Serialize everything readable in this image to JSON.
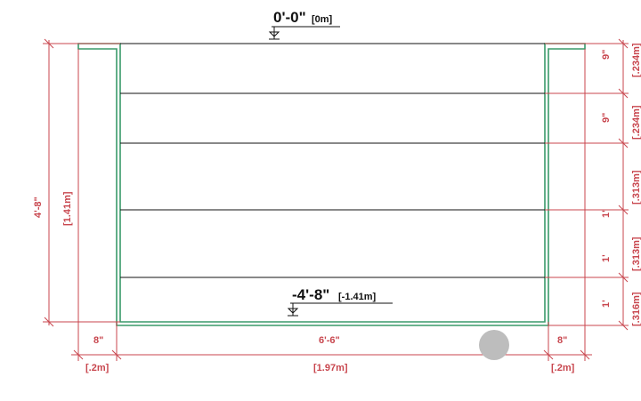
{
  "elevations": {
    "top": {
      "main": "0'-0\"",
      "metric": "[0m]"
    },
    "bottom": {
      "main": "-4'-8\"",
      "metric": "[-1.41m]"
    }
  },
  "dimensions": {
    "overall_height": {
      "imperial": "4'-8\"",
      "metric": "[1.41m]"
    },
    "width_left": {
      "imperial": "8\"",
      "metric": "[.2m]"
    },
    "width_center": {
      "imperial": "6'-6\"",
      "metric": "[1.97m]"
    },
    "width_right": {
      "imperial": "8\"",
      "metric": "[.2m]"
    },
    "layers": [
      {
        "imperial": "9\"",
        "metric": "[.234m]"
      },
      {
        "imperial": "9\"",
        "metric": "[.234m]"
      },
      {
        "imperial": "1'",
        "metric": "[.313m]"
      },
      {
        "imperial": "1'",
        "metric": "[.313m]"
      },
      {
        "imperial": "1'",
        "metric": "[.316m]"
      }
    ]
  },
  "colors": {
    "dimension": "#c8464e",
    "wall": "#3a9a6a",
    "layer_line": "#111111",
    "marker": "#bdbdbd"
  }
}
